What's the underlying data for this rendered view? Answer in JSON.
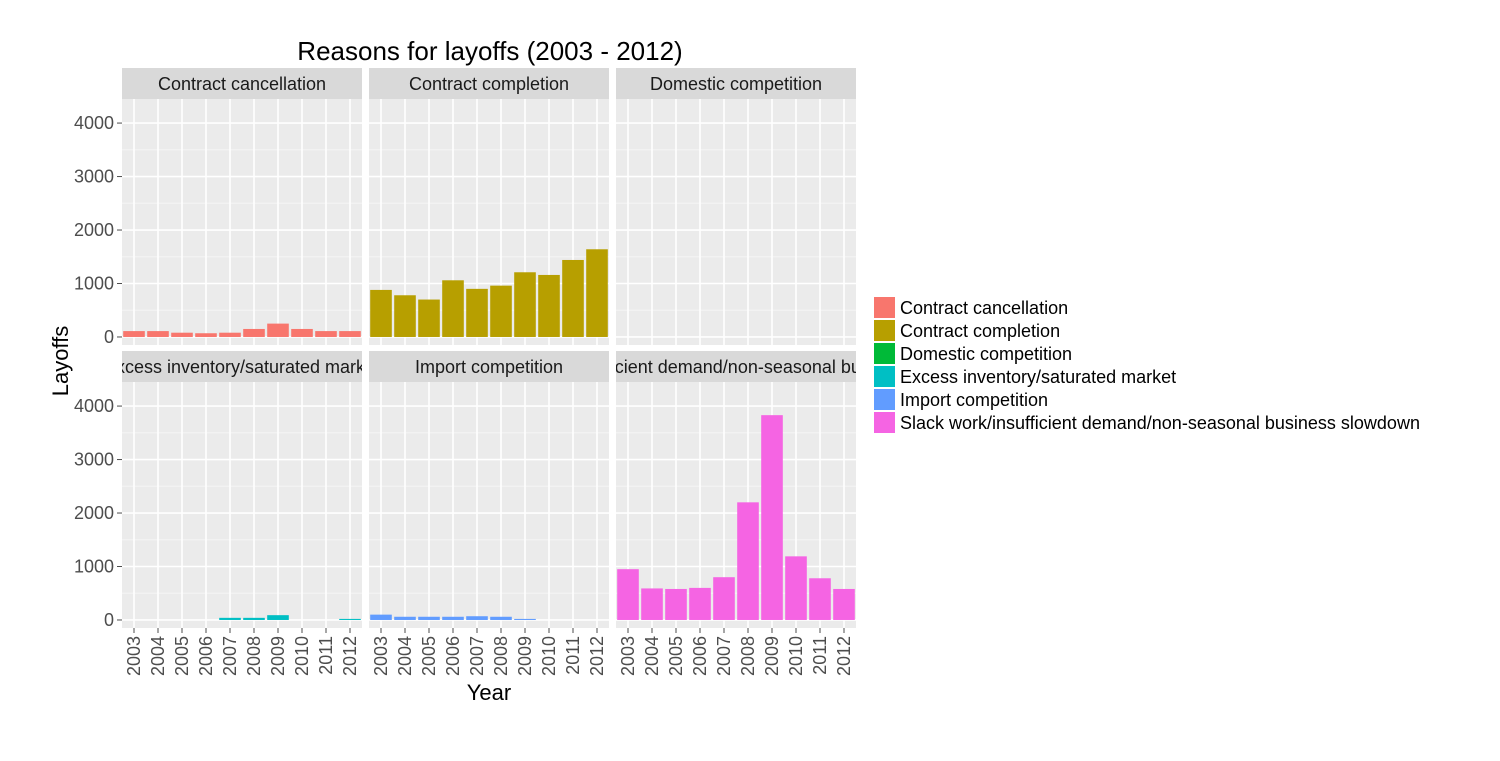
{
  "chart_data": {
    "type": "bar",
    "title": "Reasons for layoffs (2003 - 2012)",
    "xlabel": "Year",
    "ylabel": "Layoffs",
    "ylim": [
      -150,
      4450
    ],
    "yticks": [
      0,
      1000,
      2000,
      3000,
      4000
    ],
    "categories": [
      "2003",
      "2004",
      "2005",
      "2006",
      "2007",
      "2008",
      "2009",
      "2010",
      "2011",
      "2012"
    ],
    "grid": true,
    "legend_position": "right",
    "series": [
      {
        "name": "Contract cancellation",
        "color": "#F8766D",
        "values": [
          110,
          110,
          80,
          70,
          80,
          150,
          250,
          150,
          110,
          110
        ]
      },
      {
        "name": "Contract completion",
        "color": "#B79F00",
        "values": [
          880,
          780,
          700,
          1060,
          900,
          960,
          1210,
          1160,
          1440,
          1640
        ]
      },
      {
        "name": "Domestic competition",
        "color": "#00BA38",
        "values": [
          0,
          0,
          0,
          0,
          0,
          0,
          0,
          0,
          0,
          0
        ]
      },
      {
        "name": "Excess inventory/saturated market",
        "color": "#00BFC4",
        "values": [
          0,
          0,
          0,
          0,
          40,
          40,
          90,
          0,
          0,
          20
        ]
      },
      {
        "name": "Import competition",
        "color": "#619CFF",
        "values": [
          100,
          60,
          60,
          60,
          70,
          60,
          20,
          0,
          0,
          0
        ]
      },
      {
        "name": "Slack work/insufficient demand/non-seasonal business slowdown",
        "color": "#F564E3",
        "values": [
          950,
          590,
          580,
          600,
          800,
          2200,
          3830,
          1190,
          780,
          580
        ]
      }
    ]
  }
}
